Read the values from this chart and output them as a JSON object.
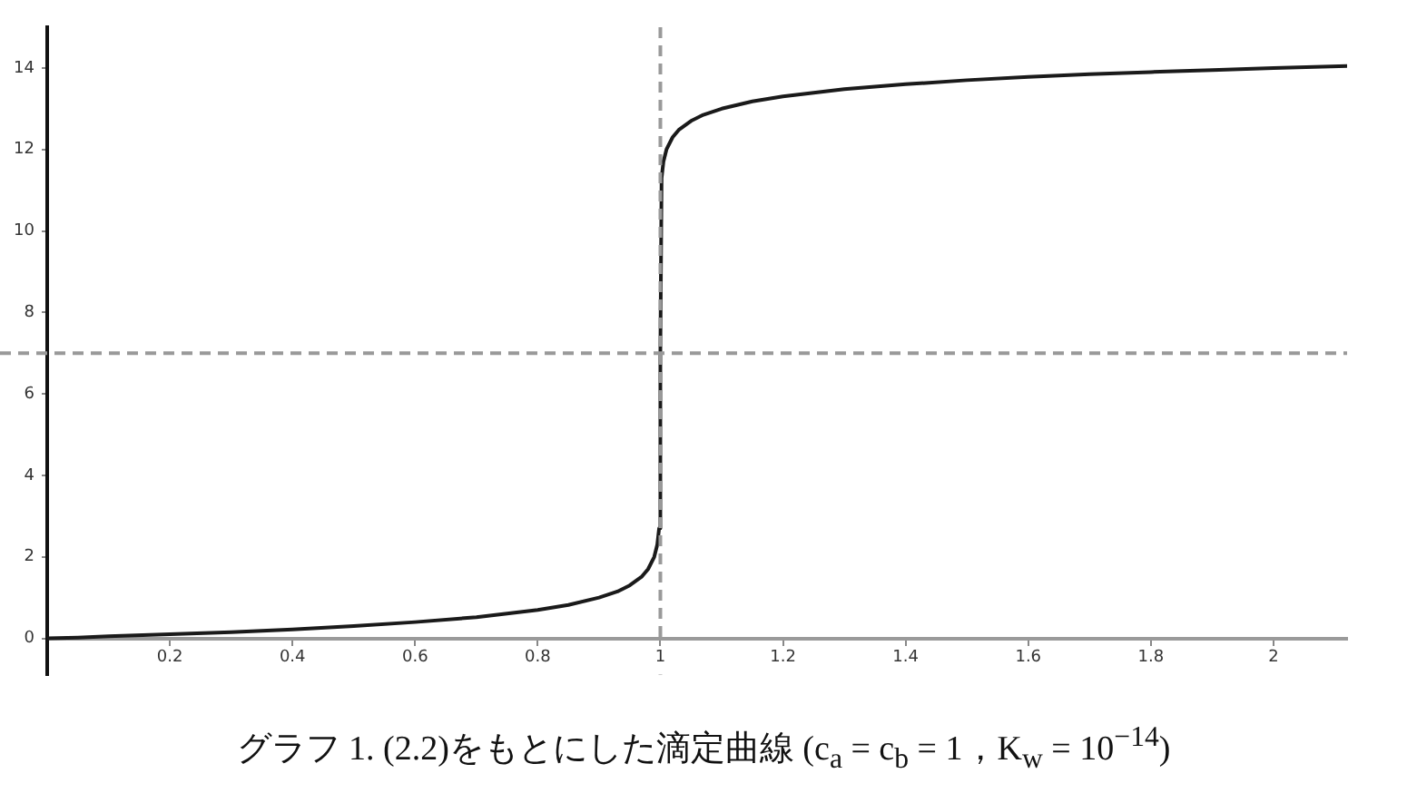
{
  "chart_data": {
    "type": "line",
    "title": "グラフ 1. (2.2)をもとにした滴定曲線 (c$_{a}$ = c$_{b}$ = 1，K$_{w}$ = 10$^{−14}$)",
    "x": [
      0,
      0.05,
      0.1,
      0.2,
      0.3,
      0.4,
      0.5,
      0.6,
      0.7,
      0.8,
      0.85,
      0.9,
      0.93,
      0.95,
      0.97,
      0.98,
      0.99,
      0.995,
      0.998,
      1,
      1.002,
      1.005,
      1.01,
      1.02,
      1.03,
      1.05,
      1.07,
      1.1,
      1.15,
      1.2,
      1.3,
      1.4,
      1.5,
      1.6,
      1.7,
      1.8,
      1.9,
      2,
      2.12
    ],
    "series": [
      {
        "color": "#1a1a1a",
        "values": [
          0,
          0.02,
          0.05,
          0.1,
          0.15,
          0.22,
          0.3,
          0.4,
          0.52,
          0.7,
          0.82,
          1.0,
          1.15,
          1.3,
          1.52,
          1.7,
          2.0,
          2.3,
          2.7,
          7,
          11.3,
          11.7,
          12.0,
          12.3,
          12.48,
          12.7,
          12.85,
          13.0,
          13.18,
          13.3,
          13.48,
          13.6,
          13.7,
          13.78,
          13.85,
          13.9,
          13.95,
          14.0,
          14.05
        ]
      }
    ],
    "xlim": [
      0,
      2.12
    ],
    "ylim": [
      -0.9,
      15
    ],
    "xticks": [
      0.2,
      0.4,
      0.6,
      0.8,
      1,
      1.2,
      1.4,
      1.6,
      1.8,
      2
    ],
    "yticks": [
      0,
      2,
      4,
      6,
      8,
      10,
      12,
      14
    ],
    "ref_lines": [
      {
        "axis": "x",
        "value": 1,
        "color": "#999999",
        "line_style": "dashed"
      },
      {
        "axis": "y",
        "value": 7,
        "color": "#999999",
        "line_style": "dashed"
      }
    ]
  }
}
